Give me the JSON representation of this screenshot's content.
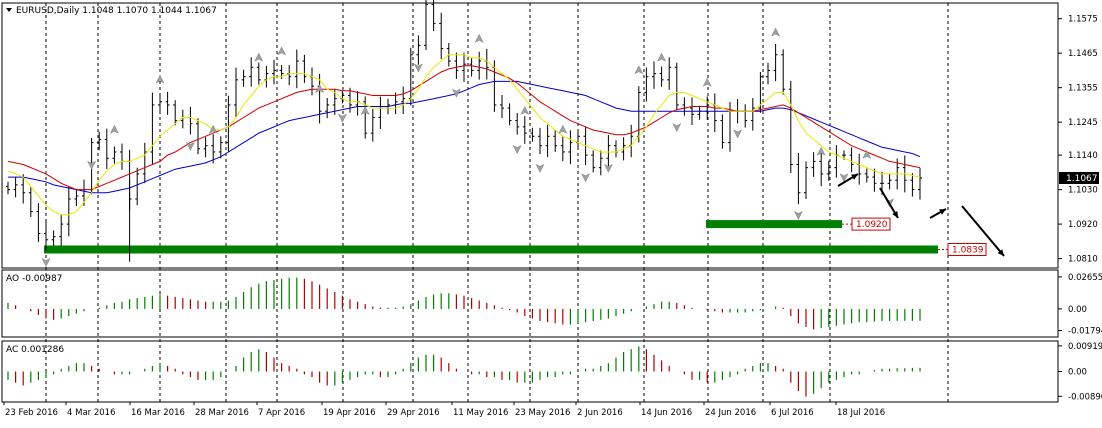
{
  "window": {
    "main_label": "EURUSD,Daily  1.1048 1.1070 1.1044 1.1067",
    "ao_label": "AO -0.00987",
    "ac_label": "AC 0.001286"
  },
  "colors": {
    "ma_fast": "#e8e800",
    "ma_mid": "#cc0000",
    "ma_slow": "#0000cc",
    "osc_up": "#008000",
    "osc_down": "#b00000",
    "support": "#008000",
    "price_box": "#cc0000",
    "fractal": "#a0a0a0"
  },
  "chart_data": [
    {
      "type": "ohlc",
      "name": "main",
      "symbol": "EURUSD",
      "timeframe": "Daily",
      "ohlc": [
        1.1048,
        1.107,
        1.1044,
        1.1067
      ],
      "current_price": "1.1067",
      "ylim": [
        1.078,
        1.1625
      ],
      "y_ticks": [
        "1.1575",
        "1.1465",
        "1.1355",
        "1.1245",
        "1.1140",
        "1.1030",
        "1.0920",
        "1.0810"
      ],
      "x_ticks": [
        "23 Feb 2016",
        "4 Mar 2016",
        "16 Mar 2016",
        "28 Mar 2016",
        "7 Apr 2016",
        "19 Apr 2016",
        "29 Apr 2016",
        "11 May 2016",
        "23 May 2016",
        "2 Jun 2016",
        "14 Jun 2016",
        "24 Jun 2016",
        "6 Jul 2016",
        "18 Jul 2016"
      ],
      "closes": [
        1.103,
        1.1045,
        1.102,
        1.096,
        1.089,
        1.087,
        1.088,
        1.092,
        1.1,
        1.101,
        1.103,
        1.118,
        1.119,
        1.113,
        1.115,
        1.112,
        1.1,
        1.108,
        1.115,
        1.13,
        1.131,
        1.13,
        1.125,
        1.126,
        1.124,
        1.116,
        1.117,
        1.115,
        1.118,
        1.13,
        1.138,
        1.139,
        1.142,
        1.138,
        1.14,
        1.141,
        1.14,
        1.139,
        1.144,
        1.139,
        1.136,
        1.128,
        1.13,
        1.132,
        1.133,
        1.13,
        1.131,
        1.121,
        1.126,
        1.129,
        1.13,
        1.131,
        1.132,
        1.146,
        1.149,
        1.162,
        1.156,
        1.148,
        1.144,
        1.141,
        1.143,
        1.141,
        1.144,
        1.142,
        1.13,
        1.129,
        1.125,
        1.123,
        1.121,
        1.12,
        1.117,
        1.12,
        1.117,
        1.115,
        1.118,
        1.12,
        1.114,
        1.11,
        1.113,
        1.117,
        1.115,
        1.117,
        1.12,
        1.134,
        1.139,
        1.14,
        1.138,
        1.142,
        1.13,
        1.129,
        1.127,
        1.128,
        1.13,
        1.125,
        1.118,
        1.128,
        1.128,
        1.125,
        1.129,
        1.139,
        1.141,
        1.146,
        1.135,
        1.111,
        1.102,
        1.11,
        1.112,
        1.108,
        1.11,
        1.114,
        1.114,
        1.111,
        1.108,
        1.107,
        1.105,
        1.105,
        1.106,
        1.11,
        1.106,
        1.103,
        1.1067
      ],
      "ma_fast": [
        1.109,
        1.108,
        1.107,
        1.104,
        1.101,
        1.098,
        1.096,
        1.095,
        1.095,
        1.096,
        1.099,
        1.102,
        1.106,
        1.109,
        1.111,
        1.112,
        1.112,
        1.113,
        1.114,
        1.117,
        1.12,
        1.122,
        1.124,
        1.126,
        1.126,
        1.125,
        1.124,
        1.122,
        1.122,
        1.123,
        1.126,
        1.13,
        1.133,
        1.136,
        1.138,
        1.139,
        1.139,
        1.14,
        1.14,
        1.14,
        1.139,
        1.138,
        1.135,
        1.134,
        1.132,
        1.131,
        1.131,
        1.13,
        1.129,
        1.129,
        1.129,
        1.129,
        1.13,
        1.132,
        1.135,
        1.139,
        1.142,
        1.144,
        1.146,
        1.146,
        1.146,
        1.145,
        1.145,
        1.144,
        1.142,
        1.14,
        1.138,
        1.135,
        1.132,
        1.129,
        1.126,
        1.124,
        1.122,
        1.12,
        1.119,
        1.118,
        1.117,
        1.116,
        1.115,
        1.115,
        1.115,
        1.116,
        1.117,
        1.12,
        1.123,
        1.127,
        1.13,
        1.133,
        1.134,
        1.134,
        1.133,
        1.132,
        1.131,
        1.13,
        1.129,
        1.128,
        1.128,
        1.128,
        1.128,
        1.13,
        1.132,
        1.134,
        1.134,
        1.13,
        1.125,
        1.121,
        1.119,
        1.117,
        1.115,
        1.114,
        1.113,
        1.112,
        1.111,
        1.11,
        1.109,
        1.108,
        1.108,
        1.108,
        1.108,
        1.1075,
        1.107
      ],
      "ma_mid": [
        1.112,
        1.1115,
        1.111,
        1.11,
        1.109,
        1.108,
        1.1065,
        1.105,
        1.104,
        1.103,
        1.103,
        1.103,
        1.104,
        1.105,
        1.106,
        1.107,
        1.108,
        1.109,
        1.11,
        1.111,
        1.112,
        1.114,
        1.115,
        1.1165,
        1.118,
        1.119,
        1.12,
        1.121,
        1.122,
        1.123,
        1.1245,
        1.126,
        1.1275,
        1.129,
        1.13,
        1.131,
        1.132,
        1.133,
        1.134,
        1.1345,
        1.135,
        1.135,
        1.135,
        1.135,
        1.1345,
        1.1345,
        1.134,
        1.1335,
        1.133,
        1.133,
        1.133,
        1.133,
        1.1335,
        1.1345,
        1.136,
        1.1375,
        1.139,
        1.1405,
        1.1415,
        1.142,
        1.1425,
        1.1425,
        1.142,
        1.1415,
        1.1405,
        1.1395,
        1.1385,
        1.137,
        1.135,
        1.133,
        1.131,
        1.1295,
        1.128,
        1.1265,
        1.125,
        1.124,
        1.123,
        1.122,
        1.1215,
        1.121,
        1.1205,
        1.1205,
        1.121,
        1.122,
        1.123,
        1.1245,
        1.126,
        1.1275,
        1.1285,
        1.129,
        1.1295,
        1.1295,
        1.1295,
        1.129,
        1.129,
        1.1285,
        1.128,
        1.128,
        1.128,
        1.1285,
        1.129,
        1.1295,
        1.13,
        1.129,
        1.1275,
        1.126,
        1.1245,
        1.123,
        1.1215,
        1.12,
        1.1185,
        1.117,
        1.116,
        1.115,
        1.114,
        1.113,
        1.112,
        1.1115,
        1.111,
        1.1105,
        1.11
      ],
      "ma_slow": [
        1.107,
        1.107,
        1.107,
        1.1065,
        1.106,
        1.1055,
        1.1045,
        1.104,
        1.1035,
        1.103,
        1.1025,
        1.102,
        1.102,
        1.102,
        1.1025,
        1.103,
        1.1035,
        1.1045,
        1.1055,
        1.1065,
        1.1075,
        1.1085,
        1.1095,
        1.11,
        1.1105,
        1.111,
        1.1115,
        1.1125,
        1.1135,
        1.115,
        1.1165,
        1.118,
        1.1195,
        1.121,
        1.122,
        1.123,
        1.124,
        1.125,
        1.1255,
        1.126,
        1.1265,
        1.127,
        1.1275,
        1.128,
        1.1285,
        1.129,
        1.1295,
        1.1295,
        1.1295,
        1.1295,
        1.1295,
        1.13,
        1.1305,
        1.1305,
        1.131,
        1.1315,
        1.132,
        1.1325,
        1.133,
        1.1335,
        1.1345,
        1.1355,
        1.1365,
        1.137,
        1.1375,
        1.1375,
        1.1375,
        1.1375,
        1.137,
        1.1365,
        1.136,
        1.1355,
        1.135,
        1.1345,
        1.134,
        1.1335,
        1.133,
        1.132,
        1.131,
        1.13,
        1.129,
        1.1285,
        1.128,
        1.128,
        1.128,
        1.128,
        1.128,
        1.128,
        1.128,
        1.128,
        1.128,
        1.128,
        1.128,
        1.128,
        1.128,
        1.128,
        1.128,
        1.128,
        1.128,
        1.128,
        1.1285,
        1.129,
        1.129,
        1.1285,
        1.1275,
        1.1265,
        1.1255,
        1.1245,
        1.1235,
        1.1225,
        1.1215,
        1.1205,
        1.1195,
        1.1185,
        1.1175,
        1.1165,
        1.116,
        1.1155,
        1.115,
        1.1145,
        1.1135
      ],
      "levels": [
        {
          "name": "support-1",
          "value": 1.092,
          "label": "1.0920"
        },
        {
          "name": "support-2",
          "value": 1.0839,
          "label": "1.0839"
        }
      ]
    },
    {
      "type": "bar",
      "name": "AO",
      "label": "AO -0.00987",
      "ylim": [
        -0.02,
        0.029
      ],
      "y_ticks": [
        "0.02655",
        "0.00",
        "-0.01794"
      ],
      "values": [
        0.005,
        0.003,
        0.0,
        -0.002,
        -0.005,
        -0.008,
        -0.009,
        -0.008,
        -0.006,
        -0.004,
        -0.002,
        0.0,
        0.001,
        0.003,
        0.005,
        0.006,
        0.008,
        0.009,
        0.01,
        0.011,
        0.012,
        0.011,
        0.01,
        0.009,
        0.008,
        0.007,
        0.006,
        0.006,
        0.006,
        0.007,
        0.01,
        0.014,
        0.018,
        0.021,
        0.023,
        0.024,
        0.025,
        0.026,
        0.026,
        0.025,
        0.023,
        0.02,
        0.017,
        0.014,
        0.011,
        0.008,
        0.006,
        0.004,
        0.002,
        0.001,
        0.001,
        0.001,
        0.002,
        0.004,
        0.007,
        0.01,
        0.012,
        0.013,
        0.013,
        0.012,
        0.011,
        0.009,
        0.007,
        0.005,
        0.003,
        0.001,
        -0.001,
        -0.003,
        -0.006,
        -0.008,
        -0.01,
        -0.011,
        -0.012,
        -0.013,
        -0.013,
        -0.012,
        -0.011,
        -0.01,
        -0.009,
        -0.008,
        -0.006,
        -0.004,
        -0.002,
        0.0,
        0.002,
        0.004,
        0.006,
        0.006,
        0.005,
        0.003,
        0.001,
        0.0,
        -0.001,
        -0.002,
        -0.003,
        -0.003,
        -0.003,
        -0.003,
        -0.002,
        -0.001,
        0.0,
        0.002,
        0.001,
        -0.006,
        -0.012,
        -0.015,
        -0.017,
        -0.016,
        -0.015,
        -0.014,
        -0.013,
        -0.012,
        -0.011,
        -0.011,
        -0.0105,
        -0.01,
        -0.01,
        -0.0099,
        -0.0099,
        -0.0099,
        -0.00987
      ]
    },
    {
      "type": "bar",
      "name": "AC",
      "label": "AC 0.001286",
      "ylim": [
        -0.0095,
        0.0095
      ],
      "y_ticks": [
        "0.009195",
        "0.00",
        "-0.00890"
      ],
      "values": [
        -0.003,
        -0.004,
        -0.005,
        -0.004,
        -0.003,
        -0.002,
        -0.001,
        0.001,
        0.002,
        0.003,
        0.003,
        0.002,
        0.001,
        0.0,
        -0.001,
        -0.001,
        -0.001,
        0.0,
        0.001,
        0.002,
        0.003,
        0.002,
        0.001,
        -0.001,
        -0.002,
        -0.003,
        -0.003,
        -0.003,
        -0.002,
        0.0,
        0.002,
        0.005,
        0.007,
        0.008,
        0.007,
        0.005,
        0.003,
        0.002,
        0.001,
        -0.001,
        -0.002,
        -0.004,
        -0.005,
        -0.005,
        -0.004,
        -0.003,
        -0.002,
        -0.001,
        -0.001,
        -0.002,
        -0.002,
        -0.001,
        0.001,
        0.003,
        0.005,
        0.006,
        0.006,
        0.005,
        0.003,
        0.001,
        0.0,
        -0.001,
        -0.001,
        -0.002,
        -0.002,
        -0.003,
        -0.003,
        -0.004,
        -0.004,
        -0.004,
        -0.003,
        -0.002,
        -0.002,
        -0.001,
        -0.001,
        0.0,
        0.001,
        0.001,
        0.002,
        0.003,
        0.005,
        0.007,
        0.008,
        0.009,
        0.008,
        0.006,
        0.004,
        0.002,
        0.0,
        -0.001,
        -0.003,
        -0.003,
        -0.004,
        -0.004,
        -0.003,
        -0.002,
        -0.001,
        0.001,
        0.002,
        0.003,
        0.003,
        0.002,
        0.001,
        -0.004,
        -0.007,
        -0.009,
        -0.008,
        -0.006,
        -0.004,
        -0.003,
        -0.002,
        -0.001,
        -0.001,
        0.0,
        0.0005,
        0.001,
        0.001,
        0.0012,
        0.0012,
        0.0013,
        0.0013
      ]
    }
  ]
}
